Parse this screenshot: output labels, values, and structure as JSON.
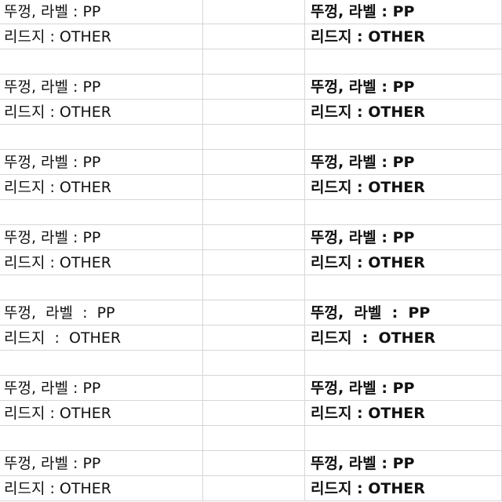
{
  "groups": [
    {
      "left": [
        "뚜껑, 라벨 : PP",
        "리드지 : OTHER"
      ],
      "right": [
        "뚜껑, 라벨 : PP",
        "리드지 : OTHER"
      ]
    },
    {
      "left": [
        "뚜껑, 라벨 : PP",
        "리드지 : OTHER"
      ],
      "right": [
        "뚜껑, 라벨 : PP",
        "리드지 : OTHER"
      ]
    },
    {
      "left": [
        "뚜껑, 라벨 : PP",
        "리드지 : OTHER"
      ],
      "right": [
        "뚜껑, 라벨 : PP",
        "리드지 : OTHER"
      ]
    },
    {
      "left": [
        "뚜껑, 라벨 : PP",
        "리드지 : OTHER"
      ],
      "right": [
        "뚜껑, 라벨 : PP",
        "리드지 : OTHER"
      ]
    },
    {
      "left": [
        "뚜껑,  라벨  :  PP",
        "리드지  :  OTHER"
      ],
      "right": [
        "뚜껑,  라벨  :  PP",
        "리드지  :  OTHER"
      ]
    },
    {
      "left": [
        "뚜껑, 라벨 : PP",
        "리드지 : OTHER"
      ],
      "right": [
        "뚜껑, 라벨 : PP",
        "리드지 : OTHER"
      ]
    },
    {
      "left": [
        "뚜껑, 라벨 : PP",
        "리드지 : OTHER"
      ],
      "right": [
        "뚜껑, 라벨 : PP",
        "리드지 : OTHER"
      ]
    }
  ],
  "colors": {
    "gridline": "#d6d6d6",
    "text": "#111111",
    "background": "#ffffff"
  }
}
